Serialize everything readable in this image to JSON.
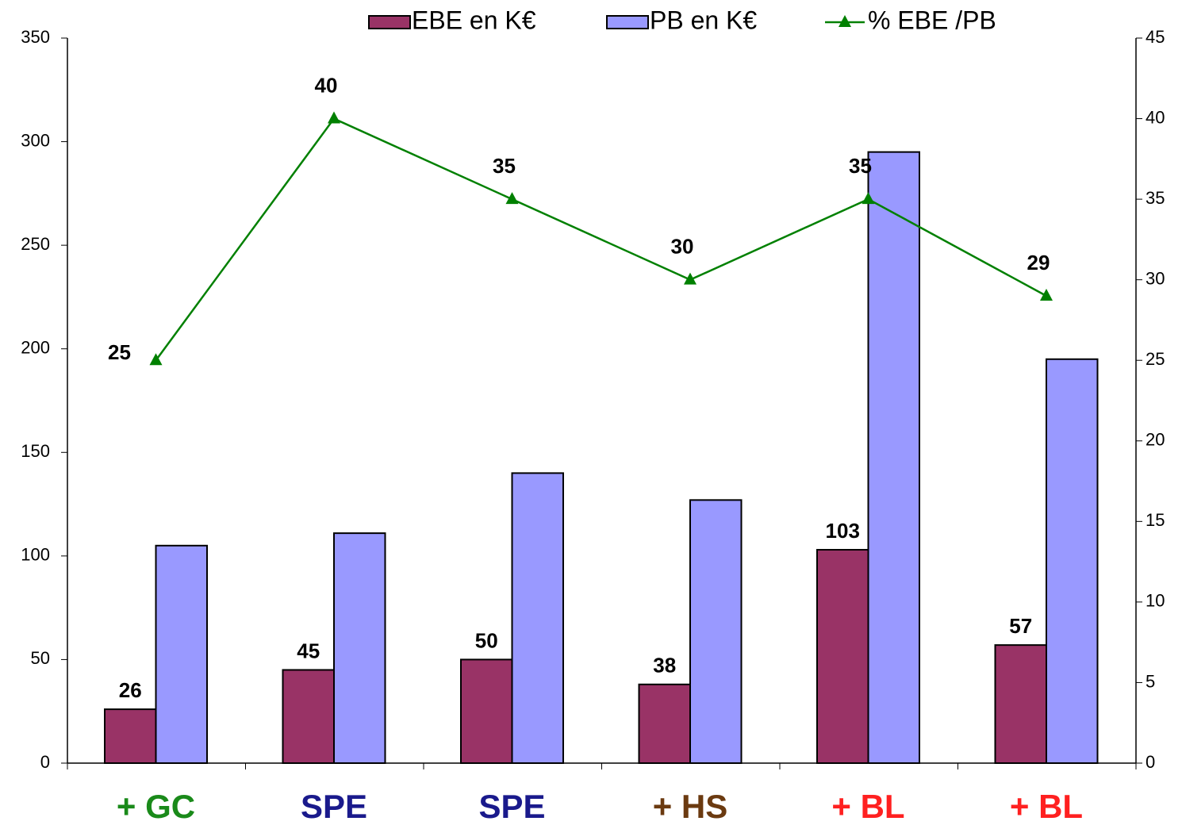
{
  "chart_data": {
    "type": "bar_line",
    "categories": [
      "+ GC",
      "SPE",
      "SPE",
      "+ HS",
      "+ BL",
      "+ BL"
    ],
    "category_colors": [
      "#1a8a1a",
      "#1a1a8c",
      "#1a1a8c",
      "#6b3a10",
      "#ff2020",
      "#ff2020"
    ],
    "series": [
      {
        "name": "EBE en K€",
        "type": "bar",
        "color": "#993366",
        "values": [
          26,
          45,
          50,
          38,
          103,
          57
        ],
        "data_labels": true
      },
      {
        "name": "PB en K€",
        "type": "bar",
        "color": "#9999ff",
        "values": [
          105,
          111,
          140,
          127,
          295,
          195
        ],
        "data_labels": false
      },
      {
        "name": "% EBE /PB",
        "type": "line",
        "axis": "y2",
        "color": "#008000",
        "marker": "triangle",
        "values": [
          25,
          40,
          35,
          30,
          35,
          29
        ],
        "data_labels": true
      }
    ],
    "ylim": [
      0,
      350
    ],
    "yticks": [
      0,
      50,
      100,
      150,
      200,
      250,
      300,
      350
    ],
    "y2lim": [
      0,
      45
    ],
    "y2ticks": [
      0,
      5,
      10,
      15,
      20,
      25,
      30,
      35,
      40,
      45
    ],
    "legend": "top",
    "grid": false
  }
}
